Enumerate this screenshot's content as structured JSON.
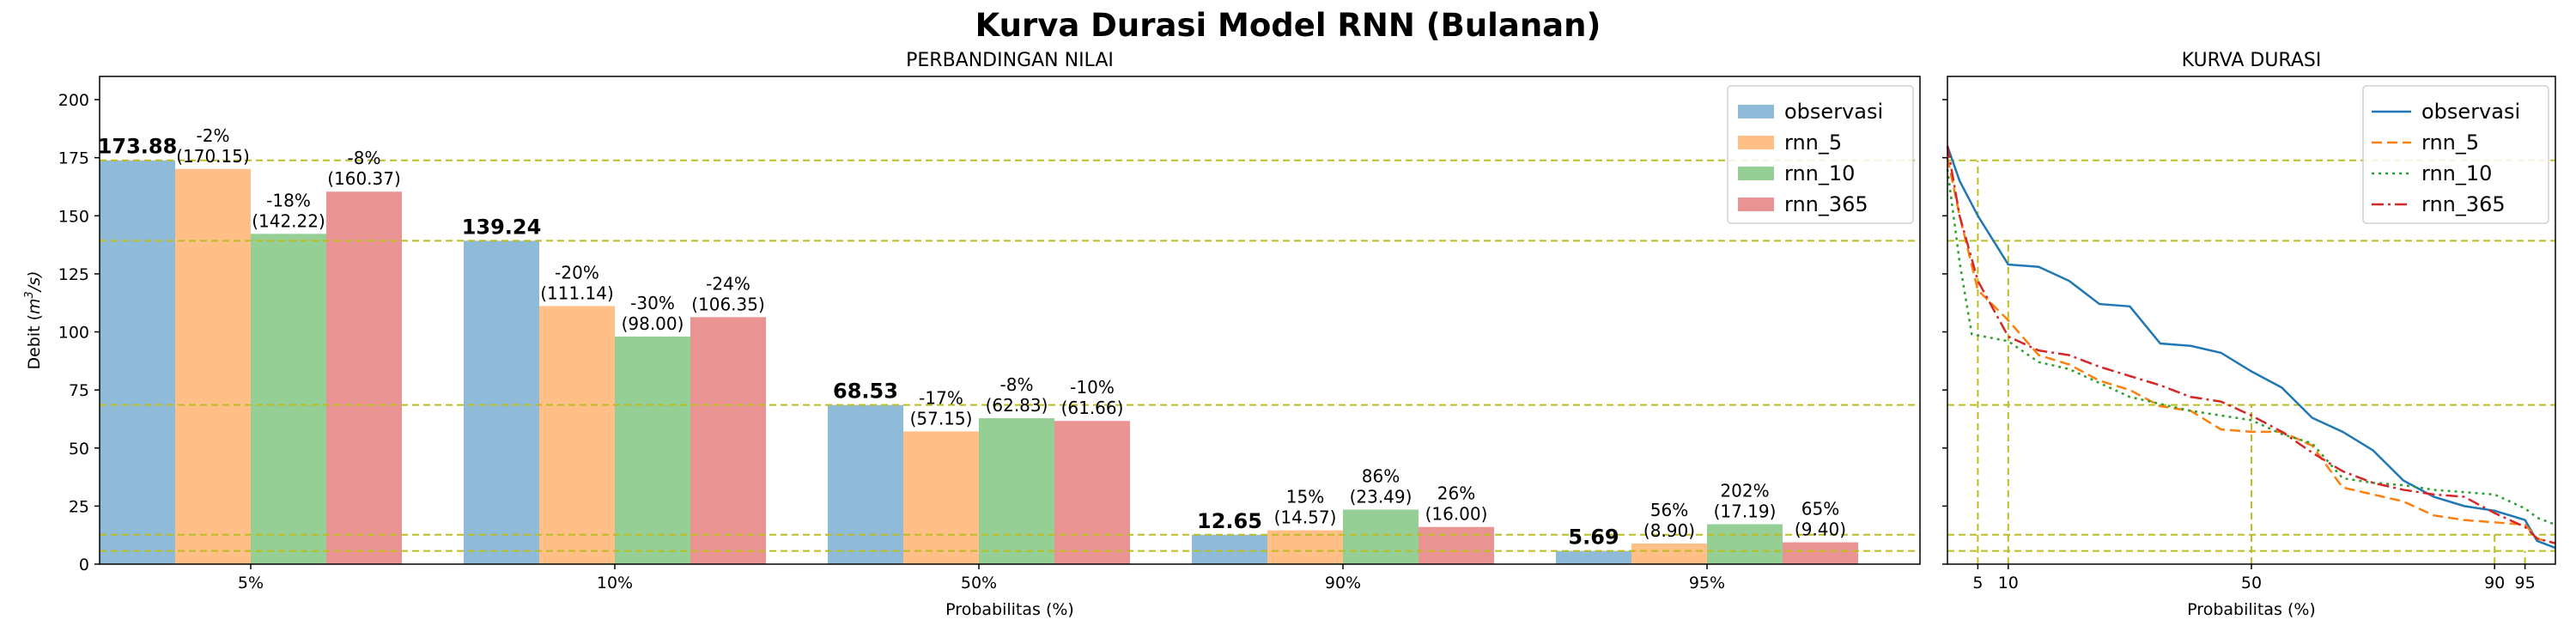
{
  "suptitle": "Kurva Durasi Model RNN (Bulanan)",
  "colors": {
    "observasi": "#1f77b4",
    "rnn_5": "#ff7f0e",
    "rnn_10": "#2ca02c",
    "rnn_365": "#d62728",
    "guide": "#bcbd22"
  },
  "chart_data": [
    {
      "type": "bar",
      "title": "PERBANDINGAN NILAI",
      "xlabel": "Probabilitas (%)",
      "ylabel": "Debit (m³/s)",
      "ylabel_prefix": "Debit (",
      "ylabel_m": "m",
      "ylabel_sup": "3",
      "ylabel_suffix": "/s)",
      "ylim": [
        0,
        210
      ],
      "yticks": [
        0,
        25,
        50,
        75,
        100,
        125,
        150,
        175,
        200
      ],
      "categories": [
        "5%",
        "10%",
        "50%",
        "90%",
        "95%"
      ],
      "series": [
        {
          "name": "observasi",
          "values": [
            173.88,
            139.24,
            68.53,
            12.65,
            5.69
          ]
        },
        {
          "name": "rnn_5",
          "values": [
            170.15,
            111.14,
            57.15,
            14.57,
            8.9
          ]
        },
        {
          "name": "rnn_10",
          "values": [
            142.22,
            98.0,
            62.83,
            23.49,
            17.19
          ]
        },
        {
          "name": "rnn_365",
          "values": [
            160.37,
            106.35,
            61.66,
            16.0,
            9.4
          ]
        }
      ],
      "obs_labels": [
        "173.88",
        "139.24",
        "68.53",
        "12.65",
        "5.69"
      ],
      "model_labels": [
        [
          [
            "-2%",
            "(170.15)"
          ],
          [
            "-18%",
            "(142.22)"
          ],
          [
            "-8%",
            "(160.37)"
          ]
        ],
        [
          [
            "-20%",
            "(111.14)"
          ],
          [
            "-30%",
            "(98.00)"
          ],
          [
            "-24%",
            "(106.35)"
          ]
        ],
        [
          [
            "-17%",
            "(57.15)"
          ],
          [
            "-8%",
            "(62.83)"
          ],
          [
            "-10%",
            "(61.66)"
          ]
        ],
        [
          [
            "15%",
            "(14.57)"
          ],
          [
            "86%",
            "(23.49)"
          ],
          [
            "26%",
            "(16.00)"
          ]
        ],
        [
          [
            "56%",
            "(8.90)"
          ],
          [
            "202%",
            "(17.19)"
          ],
          [
            "65%",
            "(9.40)"
          ]
        ]
      ],
      "reference_lines": [
        173.88,
        139.24,
        68.53,
        12.65,
        5.69
      ],
      "legend": "top-right",
      "grid": false
    },
    {
      "type": "line",
      "title": "KURVA DURASI",
      "xlabel": "Probabilitas (%)",
      "xticks": [
        5,
        10,
        50,
        90,
        95
      ],
      "xlim": [
        0,
        100
      ],
      "ylim": [
        0,
        210
      ],
      "legend": "top-right",
      "grid": false,
      "reference_lines_y": [
        173.88,
        139.24,
        68.53,
        12.65,
        5.69
      ],
      "reference_lines_x": [
        5,
        10,
        50,
        90,
        95
      ],
      "series": [
        {
          "name": "observasi",
          "style": "solid",
          "x": [
            0,
            2,
            5,
            10,
            15,
            20,
            25,
            30,
            35,
            40,
            45,
            50,
            55,
            60,
            65,
            70,
            75,
            80,
            85,
            90,
            95,
            97,
            100
          ],
          "y": [
            180,
            165,
            150,
            129,
            128,
            122,
            112,
            111,
            95,
            94,
            91,
            83,
            76,
            63,
            57,
            49,
            36,
            29,
            25,
            23,
            19,
            10,
            7
          ]
        },
        {
          "name": "rnn_5",
          "style": "dashed",
          "x": [
            0,
            2,
            5,
            10,
            15,
            20,
            25,
            30,
            35,
            40,
            45,
            50,
            55,
            60,
            65,
            70,
            75,
            80,
            85,
            90,
            95,
            97,
            100
          ],
          "y": [
            175,
            150,
            118,
            105,
            90,
            86,
            79,
            75,
            68,
            66,
            58,
            57,
            57,
            51,
            33,
            30,
            27,
            21,
            19,
            18,
            17,
            11,
            9
          ]
        },
        {
          "name": "rnn_10",
          "style": "dotted",
          "x": [
            0,
            2,
            4,
            6,
            10,
            15,
            20,
            25,
            30,
            35,
            40,
            45,
            50,
            55,
            60,
            65,
            70,
            75,
            80,
            85,
            90,
            95,
            97,
            100
          ],
          "y": [
            170,
            130,
            99,
            98,
            96,
            87,
            84,
            78,
            72,
            69,
            66,
            64,
            62,
            56,
            52,
            37,
            35,
            34,
            32,
            31,
            30,
            24,
            20,
            17
          ]
        },
        {
          "name": "rnn_365",
          "style": "dashdot",
          "x": [
            0,
            2,
            5,
            10,
            15,
            20,
            25,
            30,
            35,
            40,
            45,
            50,
            55,
            60,
            65,
            70,
            75,
            80,
            85,
            90,
            95,
            97,
            100
          ],
          "y": [
            180,
            150,
            122,
            98,
            92,
            90,
            85,
            81,
            77,
            72,
            70,
            64,
            57,
            48,
            40,
            35,
            32,
            30,
            29,
            22,
            16,
            11,
            9
          ]
        }
      ]
    }
  ]
}
